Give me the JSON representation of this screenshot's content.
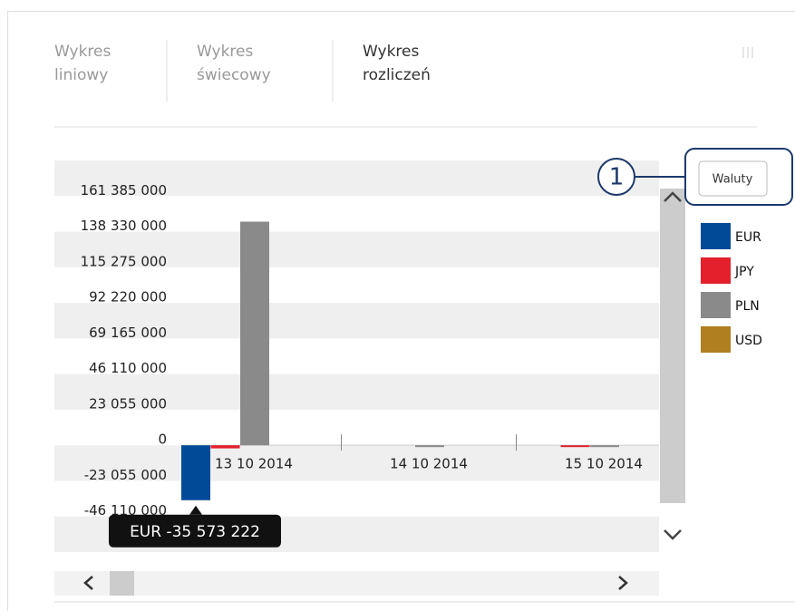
{
  "tabs": [
    "Wykres liniowy",
    "Wykres świecowy",
    "Wykres rozliczeń"
  ],
  "callout": "1",
  "button": "Waluty",
  "tooltip": "EUR -35 573 222",
  "chart_data": {
    "type": "bar",
    "categories": [
      "13 10 2014",
      "14 10 2014",
      "15 10 2014"
    ],
    "series": [
      {
        "name": "EUR",
        "color": "#004a98",
        "values": [
          -35573222,
          0,
          0
        ]
      },
      {
        "name": "JPY",
        "color": "#e3202b",
        "values": [
          -2000000,
          0,
          -1000000
        ]
      },
      {
        "name": "PLN",
        "color": "#8a8a8a",
        "values": [
          144800000,
          -500000,
          -500000
        ]
      },
      {
        "name": "USD",
        "color": "#b07f1f",
        "values": [
          0,
          0,
          0
        ]
      }
    ],
    "ylim": [
      -69165000,
      184440000
    ],
    "yticks": [
      {
        "value": 161385000,
        "label": "161 385 000"
      },
      {
        "value": 138330000,
        "label": "138 330 000"
      },
      {
        "value": 115275000,
        "label": "115 275 000"
      },
      {
        "value": 92220000,
        "label": "92 220 000"
      },
      {
        "value": 69165000,
        "label": "69 165 000"
      },
      {
        "value": 46110000,
        "label": "46 110 000"
      },
      {
        "value": 23055000,
        "label": "23 055 000"
      },
      0,
      {
        "value": -23055000,
        "label": "-23 055 000"
      },
      {
        "value": -46110000,
        "label": "-46 110 000"
      }
    ]
  }
}
